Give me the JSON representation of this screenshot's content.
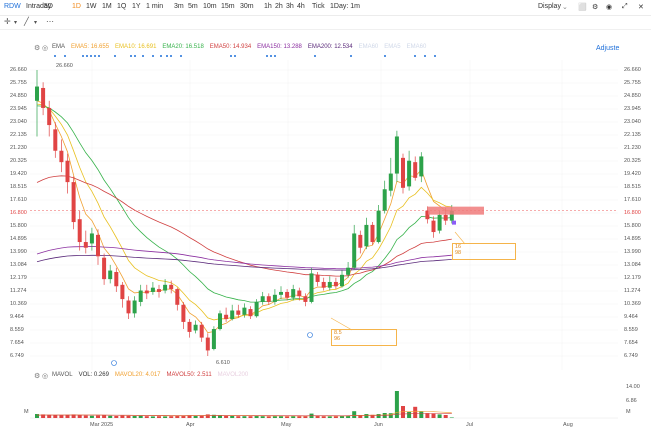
{
  "toolbar": {
    "ticker": "RDW",
    "timeframes": [
      "Intraday",
      "5D",
      "1D",
      "1W",
      "1M",
      "1Q",
      "1Y",
      "1 min",
      "3m",
      "5m",
      "10m",
      "15m",
      "30m",
      "1h",
      "2h",
      "3h",
      "4h",
      "Tick",
      "1Day: 1m"
    ],
    "active": "1D",
    "display": "Display"
  },
  "ema_bar": {
    "label": "EMA",
    "items": [
      {
        "text": "EMA5:",
        "value": "16.655",
        "color": "#f0a030"
      },
      {
        "text": "EMA10:",
        "value": "16.691",
        "color": "#e8c020"
      },
      {
        "text": "EMA20:",
        "value": "16.518",
        "color": "#36b24a"
      },
      {
        "text": "EMA50:",
        "value": "14.934",
        "color": "#d04040"
      },
      {
        "text": "EMA150:",
        "value": "13.288",
        "color": "#8b2fa0"
      },
      {
        "text": "EMA200:",
        "value": "12.534",
        "color": "#5a2a7a"
      }
    ],
    "faded": [
      "EMA60",
      "EMA5",
      "EMA60"
    ]
  },
  "adjusted": "Adjuste",
  "price_axis": [
    "26.660",
    "25.755",
    "24.850",
    "23.945",
    "23.040",
    "22.135",
    "21.230",
    "20.325",
    "19.420",
    "18.515",
    "17.610",
    "16.800",
    "15.800",
    "14.895",
    "13.990",
    "13.084",
    "12.179",
    "11.274",
    "10.369",
    "9.464",
    "8.559",
    "7.654",
    "6.749"
  ],
  "current_price": "16.800",
  "high_label": "26.660",
  "low_label": "6.610",
  "dates": [
    "Mar 2025",
    "Apr",
    "May",
    "Jun",
    "Jul",
    "Aug"
  ],
  "annotations": [
    {
      "l1": "8.5",
      "l2": "96"
    },
    {
      "l1": "16",
      "l2": "98"
    }
  ],
  "vol_bar": {
    "label": "MAVOL",
    "items": [
      {
        "text": "VOL:",
        "value": "0.269",
        "color": "#333333"
      },
      {
        "text": "MAVOL20:",
        "value": "4.017",
        "color": "#f0a030"
      },
      {
        "text": "MAVOL50:",
        "value": "2.511",
        "color": "#d04040"
      }
    ],
    "faded": "MAVOL200"
  },
  "vol_axis": [
    "14.00",
    "6.86",
    "M"
  ],
  "vol_unit": "M",
  "chart_data": {
    "type": "candlestick",
    "candles": [
      [
        24.5,
        25.5,
        26.66,
        22.0
      ],
      [
        25.4,
        24.0,
        25.8,
        23.5
      ],
      [
        24.0,
        22.8,
        24.5,
        22.0
      ],
      [
        22.5,
        21.0,
        23.0,
        20.5
      ],
      [
        21.0,
        20.2,
        21.8,
        19.5
      ],
      [
        20.3,
        18.8,
        20.8,
        18.0
      ],
      [
        18.8,
        16.0,
        19.2,
        15.5
      ],
      [
        16.2,
        14.6,
        16.8,
        14.0
      ],
      [
        14.6,
        14.2,
        15.4,
        13.8
      ],
      [
        14.5,
        15.2,
        15.6,
        14.0
      ],
      [
        15.1,
        13.6,
        15.5,
        13.0
      ],
      [
        13.5,
        12.0,
        13.8,
        11.6
      ],
      [
        12.0,
        12.6,
        13.0,
        11.7
      ],
      [
        12.5,
        11.5,
        12.8,
        11.1
      ],
      [
        11.6,
        10.6,
        11.8,
        10.0
      ],
      [
        10.5,
        9.6,
        10.8,
        9.2
      ],
      [
        9.6,
        10.5,
        10.8,
        9.3
      ],
      [
        10.4,
        11.2,
        11.6,
        10.1
      ],
      [
        11.2,
        11.0,
        11.6,
        10.6
      ],
      [
        11.1,
        11.4,
        11.8,
        10.9
      ],
      [
        11.3,
        11.1,
        11.6,
        10.7
      ],
      [
        11.2,
        11.6,
        12.0,
        11.0
      ],
      [
        11.6,
        11.3,
        11.9,
        11.0
      ],
      [
        11.3,
        10.2,
        11.4,
        9.8
      ],
      [
        10.2,
        9.0,
        10.4,
        8.5
      ],
      [
        9.0,
        8.3,
        9.2,
        7.9
      ],
      [
        8.4,
        8.8,
        9.1,
        8.2
      ],
      [
        8.8,
        7.9,
        9.0,
        7.6
      ],
      [
        7.9,
        7.0,
        8.2,
        6.61
      ],
      [
        7.1,
        8.5,
        8.7,
        7.0
      ],
      [
        8.5,
        9.6,
        9.8,
        8.4
      ],
      [
        9.5,
        9.2,
        10.0,
        9.0
      ],
      [
        9.2,
        9.8,
        10.2,
        9.1
      ],
      [
        9.8,
        9.5,
        10.2,
        9.3
      ],
      [
        9.5,
        10.0,
        10.3,
        9.3
      ],
      [
        9.9,
        9.4,
        10.1,
        9.2
      ],
      [
        9.4,
        10.4,
        10.6,
        9.3
      ],
      [
        10.4,
        10.8,
        11.1,
        10.2
      ],
      [
        10.8,
        10.4,
        11.0,
        10.2
      ],
      [
        10.4,
        10.9,
        11.3,
        10.2
      ],
      [
        10.9,
        11.1,
        11.5,
        10.6
      ],
      [
        11.1,
        10.7,
        11.3,
        10.5
      ],
      [
        10.7,
        11.3,
        11.6,
        10.5
      ],
      [
        11.2,
        10.8,
        11.4,
        10.5
      ],
      [
        10.8,
        10.4,
        11.0,
        10.1
      ],
      [
        10.4,
        12.4,
        12.8,
        10.3
      ],
      [
        12.3,
        11.8,
        12.5,
        11.5
      ],
      [
        11.8,
        11.4,
        12.1,
        11.2
      ],
      [
        11.4,
        11.8,
        12.2,
        11.2
      ],
      [
        11.8,
        11.5,
        12.1,
        11.3
      ],
      [
        11.5,
        12.3,
        12.6,
        11.4
      ],
      [
        12.3,
        12.8,
        13.2,
        12.1
      ],
      [
        12.8,
        15.2,
        15.8,
        12.7
      ],
      [
        15.1,
        14.2,
        15.4,
        13.8
      ],
      [
        14.3,
        15.8,
        16.3,
        14.1
      ],
      [
        15.8,
        14.6,
        16.0,
        14.4
      ],
      [
        14.6,
        16.8,
        17.2,
        14.5
      ],
      [
        16.8,
        18.3,
        18.9,
        16.6
      ],
      [
        18.2,
        19.4,
        20.5,
        17.8
      ],
      [
        19.4,
        22.0,
        22.4,
        18.8
      ],
      [
        20.5,
        18.4,
        20.8,
        18.0
      ],
      [
        18.5,
        20.3,
        21.0,
        18.2
      ],
      [
        20.2,
        19.1,
        20.6,
        18.9
      ],
      [
        19.2,
        20.6,
        20.9,
        18.8
      ],
      [
        16.8,
        16.2,
        17.1,
        15.9
      ],
      [
        16.1,
        15.3,
        16.4,
        14.9
      ],
      [
        15.4,
        16.5,
        16.8,
        15.2
      ],
      [
        16.5,
        16.1,
        17.0,
        15.8
      ],
      [
        16.1,
        16.8,
        17.2,
        15.9
      ]
    ],
    "volume": [
      2.0,
      1.8,
      1.6,
      1.5,
      1.4,
      1.6,
      1.8,
      1.5,
      1.2,
      1.1,
      1.2,
      1.3,
      1.1,
      1.0,
      1.2,
      1.1,
      1.0,
      1.1,
      0.9,
      0.8,
      0.9,
      0.8,
      0.9,
      1.0,
      1.2,
      1.4,
      1.1,
      1.3,
      1.8,
      1.6,
      1.4,
      1.0,
      1.0,
      0.9,
      0.9,
      0.9,
      1.0,
      0.9,
      0.8,
      0.9,
      0.9,
      0.8,
      0.9,
      0.9,
      0.9,
      2.2,
      1.1,
      0.9,
      0.8,
      0.9,
      1.0,
      1.2,
      3.4,
      1.5,
      2.0,
      1.6,
      2.0,
      2.5,
      2.4,
      13.5,
      6.0,
      3.0,
      5.6,
      3.2,
      2.4,
      2.2,
      1.8,
      1.5,
      0.27
    ],
    "ylim": [
      6.61,
      26.66
    ]
  }
}
